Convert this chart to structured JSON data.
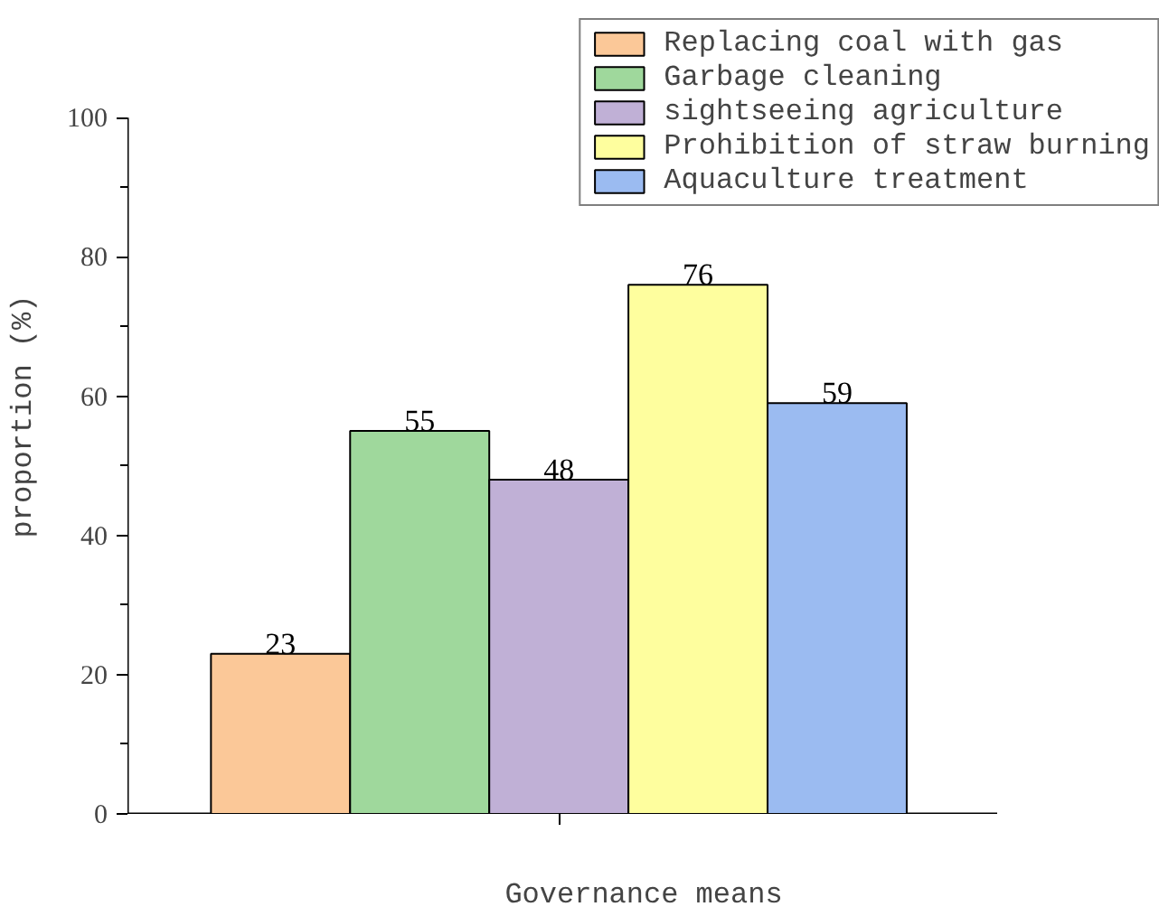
{
  "chart_data": {
    "type": "bar",
    "xlabel": "Governance means",
    "ylabel": "proportion (%)",
    "categories": [
      null
    ],
    "series": [
      {
        "name": "Replacing coal with gas",
        "color": "#fbc898",
        "values": [
          23
        ]
      },
      {
        "name": "Garbage cleaning",
        "color": "#9fd89c",
        "values": [
          55
        ]
      },
      {
        "name": "sightseeing agriculture",
        "color": "#c0b0d6",
        "values": [
          48
        ]
      },
      {
        "name": "Prohibition of straw burning",
        "color": "#fefe9e",
        "values": [
          76
        ]
      },
      {
        "name": "Aquaculture treatment",
        "color": "#9bbbf1",
        "values": [
          59
        ]
      }
    ],
    "ylim": [
      0,
      100
    ],
    "yticks": [
      0,
      20,
      40,
      60,
      80,
      100
    ],
    "data_labels": true,
    "grid": false,
    "legend": "top right"
  }
}
